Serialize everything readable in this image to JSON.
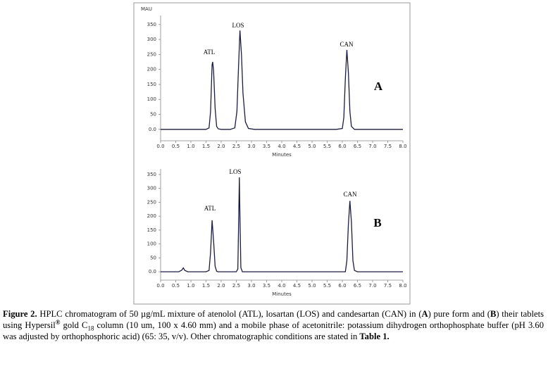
{
  "chart_data": [
    {
      "type": "line",
      "ylabel": "MAU",
      "xlabel": "Minutes",
      "annotations": [
        "ATL",
        "LOS",
        "CAN",
        "A"
      ],
      "x": [
        0,
        0.5,
        1.0,
        1.5,
        1.6,
        1.65,
        1.7,
        1.72,
        1.75,
        1.8,
        1.85,
        1.9,
        2.0,
        2.3,
        2.45,
        2.52,
        2.57,
        2.62,
        2.67,
        2.72,
        2.8,
        2.9,
        3.1,
        4,
        5,
        5.8,
        6.0,
        6.05,
        6.1,
        6.15,
        6.2,
        6.25,
        6.3,
        6.4,
        7,
        8
      ],
      "values": [
        0,
        0,
        0,
        0,
        5,
        60,
        215,
        225,
        195,
        70,
        10,
        2,
        0,
        0,
        5,
        60,
        200,
        330,
        250,
        120,
        25,
        3,
        0,
        0,
        0,
        0,
        3,
        40,
        170,
        265,
        190,
        60,
        10,
        0,
        0,
        0
      ],
      "color": "#1c1c40",
      "xlim": [
        0,
        8
      ],
      "ylim": [
        -38,
        380
      ],
      "xticks": [
        {
          "value": 0,
          "label": "0.0"
        },
        0.5,
        {
          "value": 1,
          "label": "1.0"
        },
        1.5,
        {
          "value": 2,
          "label": "2.0"
        },
        2.5,
        {
          "value": 3,
          "label": "3.0"
        },
        3.5,
        {
          "value": 4,
          "label": "4.0"
        },
        4.5,
        {
          "value": 5,
          "label": "5.0"
        },
        5.5,
        {
          "value": 6,
          "label": "6.0"
        },
        6.5,
        {
          "value": 7,
          "label": "7.0"
        },
        7.5,
        {
          "value": 8,
          "label": "8.0"
        }
      ],
      "yticks": [
        {
          "value": 0,
          "label": "0.0"
        },
        50,
        100,
        150,
        200,
        250,
        300,
        350
      ]
    },
    {
      "type": "line",
      "xlabel": "Minutes",
      "annotations": [
        "ATL",
        "LOS",
        "CAN",
        "B"
      ],
      "x": [
        0,
        0.6,
        0.7,
        0.75,
        0.8,
        0.9,
        1.5,
        1.6,
        1.65,
        1.7,
        1.75,
        1.8,
        1.85,
        1.9,
        2.5,
        2.55,
        2.58,
        2.6,
        2.62,
        2.65,
        2.7,
        3,
        6.1,
        6.15,
        6.2,
        6.25,
        6.3,
        6.35,
        6.4,
        6.5,
        8
      ],
      "values": [
        0,
        0,
        6,
        14,
        5,
        0,
        0,
        5,
        70,
        185,
        110,
        20,
        2,
        0,
        0,
        10,
        200,
        340,
        200,
        15,
        0,
        0,
        0,
        40,
        170,
        255,
        180,
        40,
        5,
        0,
        0
      ],
      "color": "#1c1c40",
      "xlim": [
        0,
        8
      ],
      "ylim": [
        -30,
        370
      ],
      "xticks": [
        {
          "value": 0,
          "label": "0.0"
        },
        0.5,
        {
          "value": 1,
          "label": "1.0"
        },
        1.5,
        {
          "value": 2,
          "label": "2.0"
        },
        2.5,
        {
          "value": 3,
          "label": "3.0"
        },
        3.5,
        {
          "value": 4,
          "label": "4.0"
        },
        4.5,
        {
          "value": 5,
          "label": "5.0"
        },
        5.5,
        {
          "value": 6,
          "label": "6.0"
        },
        6.5,
        {
          "value": 7,
          "label": "7.0"
        },
        7.5,
        {
          "value": 8,
          "label": "8.0"
        }
      ],
      "yticks": [
        {
          "value": 0,
          "label": "0.0"
        },
        50,
        100,
        150,
        200,
        250,
        300,
        350
      ]
    }
  ],
  "caption": [
    {
      "text": "Figure 2.",
      "bold": true
    },
    {
      "text": " HPLC chromatogram of 50 µg/mL mixture of atenolol (ATL), losartan (LOS) and candesartan (CAN) in ("
    },
    {
      "text": "A",
      "bold": true
    },
    {
      "text": ") pure form and ("
    },
    {
      "text": "B",
      "bold": true
    },
    {
      "text": ") their tablets using Hypersil"
    },
    {
      "text": "®",
      "sup": true,
      "bold": true
    },
    {
      "text": " gold C"
    },
    {
      "text": "18",
      "sub": true
    },
    {
      "text": " column (10 um, 100 x 4.60 mm) and a mobile phase of acetonitrile: potassium dihydrogen orthophosphate buffer (pH 3.60 was adjusted by orthophosphoric acid) (65: 35, v/v). Other chromatographic conditions are stated in "
    },
    {
      "text": "Table 1.",
      "bold": true
    }
  ]
}
